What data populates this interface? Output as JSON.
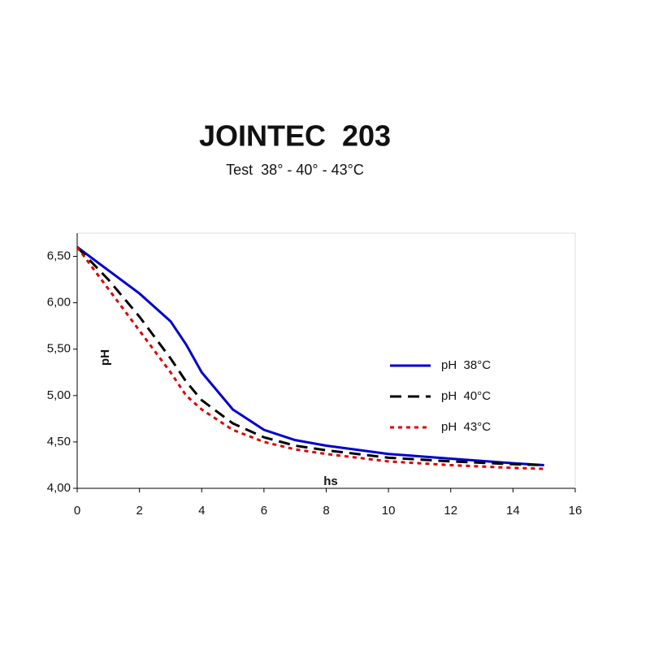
{
  "chart_data": {
    "type": "line",
    "title": "JOINTEC  203",
    "subtitle": "Test  38° - 40° - 43°C",
    "y_label": "pH",
    "x_label": "hs",
    "x": [
      0,
      1,
      2,
      3,
      3.5,
      4,
      5,
      6,
      7,
      8,
      10,
      12,
      14,
      15
    ],
    "series": [
      {
        "name": "pH  38°C",
        "color": "#0000cc",
        "dash": "solid",
        "values": [
          6.6,
          6.35,
          6.1,
          5.8,
          5.55,
          5.25,
          4.85,
          4.63,
          4.52,
          4.46,
          4.37,
          4.32,
          4.27,
          4.25
        ]
      },
      {
        "name": "pH  40°C",
        "color": "#000000",
        "dash": "dashed",
        "values": [
          6.6,
          6.25,
          5.85,
          5.4,
          5.15,
          4.95,
          4.7,
          4.55,
          4.46,
          4.41,
          4.33,
          4.29,
          4.26,
          4.25
        ]
      },
      {
        "name": "pH  43°C",
        "color": "#dd0000",
        "dash": "dotted",
        "values": [
          6.6,
          6.15,
          5.7,
          5.25,
          5.0,
          4.85,
          4.63,
          4.5,
          4.42,
          4.37,
          4.29,
          4.25,
          4.22,
          4.21
        ]
      }
    ],
    "xlim": [
      0,
      16
    ],
    "xticks": [
      0,
      2,
      4,
      6,
      8,
      10,
      12,
      14,
      16
    ],
    "ylim": [
      4,
      6.75
    ],
    "yticks": [
      {
        "value": 4,
        "label": "4,00"
      },
      {
        "value": 4.5,
        "label": "4,50"
      },
      {
        "value": 5,
        "label": "5,00"
      },
      {
        "value": 5.5,
        "label": "5,50"
      },
      {
        "value": 6,
        "label": "6,00"
      },
      {
        "value": 6.5,
        "label": "6,50"
      }
    ],
    "legend": "right"
  }
}
